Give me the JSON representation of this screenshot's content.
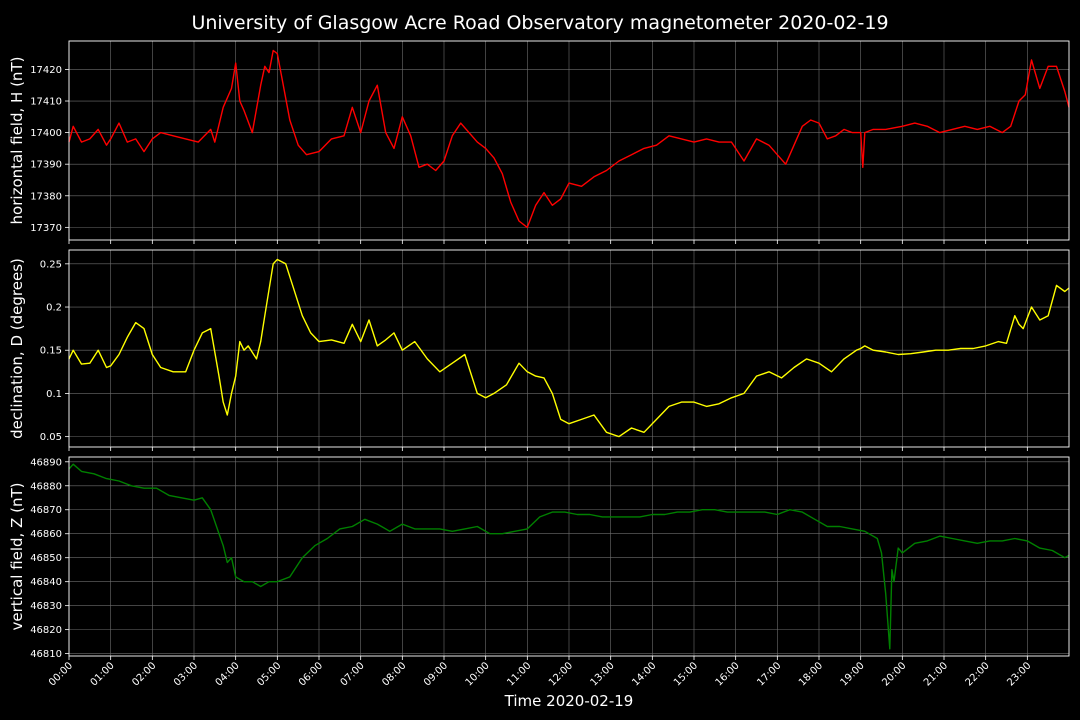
{
  "chart_data": {
    "title": "University of Glasgow Acre Road Observatory magnetometer 2020-02-19",
    "xlabel": "Time 2020-02-19",
    "x_unit": "hours since 00:00",
    "x_range": [
      0,
      24
    ],
    "x_tick_labels": [
      "00:00",
      "01:00",
      "02:00",
      "03:00",
      "04:00",
      "05:00",
      "06:00",
      "07:00",
      "08:00",
      "09:00",
      "10:00",
      "11:00",
      "12:00",
      "13:00",
      "14:00",
      "15:00",
      "16:00",
      "17:00",
      "18:00",
      "19:00",
      "20:00",
      "21:00",
      "22:00",
      "23:00"
    ],
    "grid": true,
    "panels": [
      {
        "type": "line",
        "ylabel": "horizontal field, H (nT)",
        "color": "#ff0000",
        "ylim": [
          17366,
          17429
        ],
        "yticks": [
          17370,
          17380,
          17390,
          17400,
          17410,
          17420
        ],
        "x": [
          0,
          0.1,
          0.3,
          0.5,
          0.7,
          0.9,
          1.0,
          1.2,
          1.4,
          1.6,
          1.8,
          2.0,
          2.2,
          2.5,
          2.8,
          3.1,
          3.4,
          3.5,
          3.7,
          3.9,
          4.0,
          4.1,
          4.2,
          4.4,
          4.6,
          4.7,
          4.8,
          4.9,
          5.0,
          5.1,
          5.3,
          5.5,
          5.7,
          6.0,
          6.3,
          6.6,
          6.8,
          7.0,
          7.2,
          7.4,
          7.6,
          7.8,
          8.0,
          8.2,
          8.4,
          8.6,
          8.8,
          9.0,
          9.2,
          9.4,
          9.6,
          9.8,
          10.0,
          10.2,
          10.4,
          10.6,
          10.8,
          11.0,
          11.2,
          11.4,
          11.6,
          11.8,
          12.0,
          12.3,
          12.6,
          12.9,
          13.2,
          13.5,
          13.8,
          14.1,
          14.4,
          14.7,
          15.0,
          15.3,
          15.6,
          15.9,
          16.2,
          16.5,
          16.8,
          17.0,
          17.2,
          17.4,
          17.6,
          17.8,
          18.0,
          18.2,
          18.4,
          18.6,
          18.8,
          19.0,
          19.05,
          19.1,
          19.3,
          19.6,
          20.0,
          20.3,
          20.6,
          20.9,
          21.2,
          21.5,
          21.8,
          22.1,
          22.4,
          22.6,
          22.8,
          22.95,
          23.1,
          23.3,
          23.5,
          23.7,
          23.9,
          24.0
        ],
        "values": [
          17397,
          17402,
          17397,
          17398,
          17401,
          17396,
          17398,
          17403,
          17397,
          17398,
          17394,
          17398,
          17400,
          17399,
          17398,
          17397,
          17401,
          17397,
          17408,
          17414,
          17422,
          17410,
          17407,
          17400,
          17415,
          17421,
          17419,
          17426,
          17425,
          17418,
          17404,
          17396,
          17393,
          17394,
          17398,
          17399,
          17408,
          17400,
          17410,
          17415,
          17400,
          17395,
          17405,
          17399,
          17389,
          17390,
          17388,
          17391,
          17399,
          17403,
          17400,
          17397,
          17395,
          17392,
          17387,
          17378,
          17372,
          17370,
          17377,
          17381,
          17377,
          17379,
          17384,
          17383,
          17386,
          17388,
          17391,
          17393,
          17395,
          17396,
          17399,
          17398,
          17397,
          17398,
          17397,
          17397,
          17391,
          17398,
          17396,
          17393,
          17390,
          17396,
          17402,
          17404,
          17403,
          17398,
          17399,
          17401,
          17400,
          17400,
          17389,
          17400,
          17401,
          17401,
          17402,
          17403,
          17402,
          17400,
          17401,
          17402,
          17401,
          17402,
          17400,
          17402,
          17410,
          17412,
          17423,
          17414,
          17421,
          17421,
          17413,
          17408
        ]
      },
      {
        "type": "line",
        "ylabel": "declination, D (degrees)",
        "color": "#ffff00",
        "ylim": [
          0.038,
          0.266
        ],
        "yticks": [
          0.05,
          0.1,
          0.15,
          0.2,
          0.25
        ],
        "x": [
          0,
          0.1,
          0.3,
          0.5,
          0.7,
          0.9,
          1.0,
          1.2,
          1.4,
          1.6,
          1.8,
          2.0,
          2.2,
          2.5,
          2.8,
          3.0,
          3.2,
          3.4,
          3.6,
          3.7,
          3.8,
          3.9,
          4.0,
          4.1,
          4.2,
          4.3,
          4.5,
          4.6,
          4.7,
          4.8,
          4.9,
          5.0,
          5.2,
          5.4,
          5.6,
          5.8,
          6.0,
          6.3,
          6.6,
          6.8,
          7.0,
          7.2,
          7.4,
          7.6,
          7.8,
          8.0,
          8.3,
          8.6,
          8.9,
          9.2,
          9.5,
          9.8,
          10.0,
          10.2,
          10.5,
          10.8,
          11.0,
          11.2,
          11.4,
          11.6,
          11.8,
          12.0,
          12.3,
          12.6,
          12.9,
          13.2,
          13.5,
          13.8,
          14.1,
          14.4,
          14.7,
          15.0,
          15.3,
          15.6,
          15.9,
          16.2,
          16.5,
          16.8,
          17.1,
          17.4,
          17.7,
          18.0,
          18.3,
          18.6,
          18.9,
          19.0,
          19.1,
          19.3,
          19.6,
          19.9,
          20.2,
          20.5,
          20.8,
          21.1,
          21.4,
          21.7,
          22.0,
          22.3,
          22.5,
          22.7,
          22.8,
          22.9,
          23.1,
          23.3,
          23.5,
          23.7,
          23.9,
          24.0
        ],
        "values": [
          0.14,
          0.15,
          0.134,
          0.135,
          0.15,
          0.13,
          0.132,
          0.145,
          0.165,
          0.182,
          0.175,
          0.145,
          0.13,
          0.125,
          0.125,
          0.15,
          0.17,
          0.175,
          0.12,
          0.09,
          0.075,
          0.1,
          0.12,
          0.16,
          0.15,
          0.155,
          0.14,
          0.16,
          0.19,
          0.22,
          0.25,
          0.255,
          0.25,
          0.22,
          0.19,
          0.17,
          0.16,
          0.162,
          0.158,
          0.18,
          0.16,
          0.185,
          0.155,
          0.162,
          0.17,
          0.15,
          0.16,
          0.14,
          0.125,
          0.135,
          0.145,
          0.1,
          0.095,
          0.1,
          0.11,
          0.135,
          0.125,
          0.12,
          0.118,
          0.1,
          0.07,
          0.065,
          0.07,
          0.075,
          0.055,
          0.05,
          0.06,
          0.055,
          0.07,
          0.085,
          0.09,
          0.09,
          0.085,
          0.088,
          0.095,
          0.1,
          0.12,
          0.125,
          0.118,
          0.13,
          0.14,
          0.135,
          0.125,
          0.14,
          0.15,
          0.152,
          0.155,
          0.15,
          0.148,
          0.145,
          0.146,
          0.148,
          0.15,
          0.15,
          0.152,
          0.152,
          0.155,
          0.16,
          0.158,
          0.19,
          0.18,
          0.175,
          0.2,
          0.185,
          0.19,
          0.225,
          0.218,
          0.222
        ]
      },
      {
        "type": "line",
        "ylabel": "vertical field, Z (nT)",
        "color": "#008000",
        "ylim": [
          46809,
          46892
        ],
        "yticks": [
          46810,
          46820,
          46830,
          46840,
          46850,
          46860,
          46870,
          46880,
          46890
        ],
        "x": [
          0,
          0.1,
          0.3,
          0.6,
          0.9,
          1.2,
          1.5,
          1.8,
          2.1,
          2.4,
          2.7,
          3.0,
          3.2,
          3.4,
          3.6,
          3.7,
          3.8,
          3.9,
          4.0,
          4.1,
          4.2,
          4.4,
          4.6,
          4.8,
          5.0,
          5.3,
          5.6,
          5.9,
          6.2,
          6.5,
          6.8,
          7.1,
          7.4,
          7.7,
          8.0,
          8.3,
          8.6,
          8.9,
          9.2,
          9.5,
          9.8,
          10.1,
          10.4,
          10.7,
          11.0,
          11.3,
          11.6,
          11.9,
          12.2,
          12.5,
          12.8,
          13.1,
          13.4,
          13.7,
          14.0,
          14.3,
          14.6,
          14.9,
          15.2,
          15.5,
          15.8,
          16.1,
          16.4,
          16.7,
          17.0,
          17.3,
          17.6,
          17.9,
          18.2,
          18.5,
          18.8,
          19.1,
          19.4,
          19.5,
          19.6,
          19.7,
          19.75,
          19.8,
          19.9,
          20.0,
          20.3,
          20.6,
          20.9,
          21.2,
          21.5,
          21.8,
          22.1,
          22.4,
          22.7,
          23.0,
          23.3,
          23.6,
          23.9,
          24.0
        ],
        "values": [
          46887,
          46889,
          46886,
          46885,
          46883,
          46882,
          46880,
          46879,
          46879,
          46876,
          46875,
          46874,
          46875,
          46870,
          46860,
          46855,
          46848,
          46850,
          46842,
          46841,
          46840,
          46840,
          46838,
          46840,
          46840,
          46842,
          46850,
          46855,
          46858,
          46862,
          46863,
          46866,
          46864,
          46861,
          46864,
          46862,
          46862,
          46862,
          46861,
          46862,
          46863,
          46860,
          46860,
          46861,
          46862,
          46867,
          46869,
          46869,
          46868,
          46868,
          46867,
          46867,
          46867,
          46867,
          46868,
          46868,
          46869,
          46869,
          46870,
          46870,
          46869,
          46869,
          46869,
          46869,
          46868,
          46870,
          46869,
          46866,
          46863,
          46863,
          46862,
          46861,
          46858,
          46852,
          46835,
          46812,
          46845,
          46840,
          46854,
          46852,
          46856,
          46857,
          46859,
          46858,
          46857,
          46856,
          46857,
          46857,
          46858,
          46857,
          46854,
          46853,
          46850,
          46851
        ]
      }
    ]
  }
}
